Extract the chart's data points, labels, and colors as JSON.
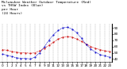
{
  "title_line1": "Milwaukee Weather Outdoor Temperature (Red)",
  "title_line2": "vs THSW Index (Blue)",
  "title_line3": "per Hour",
  "title_line4": "(24 Hours)",
  "hours": [
    0,
    1,
    2,
    3,
    4,
    5,
    6,
    7,
    8,
    9,
    10,
    11,
    12,
    13,
    14,
    15,
    16,
    17,
    18,
    19,
    20,
    21,
    22,
    23
  ],
  "temp_red": [
    55,
    54,
    52,
    51,
    50,
    50,
    49,
    50,
    53,
    57,
    62,
    67,
    72,
    75,
    76,
    75,
    72,
    68,
    64,
    60,
    57,
    55,
    53,
    52
  ],
  "thsw_blue": [
    48,
    46,
    44,
    42,
    41,
    41,
    40,
    43,
    50,
    59,
    70,
    79,
    86,
    90,
    91,
    88,
    82,
    73,
    63,
    56,
    51,
    47,
    45,
    43
  ],
  "ylim": [
    35,
    97
  ],
  "yticks": [
    40,
    50,
    60,
    70,
    80,
    90
  ],
  "ytick_labels": [
    "40",
    "50",
    "60",
    "70",
    "80",
    "90"
  ],
  "grid_color": "#888888",
  "bg_color": "#ffffff",
  "red_color": "#cc0000",
  "blue_color": "#0000cc",
  "title_fontsize": 3.2,
  "tick_fontsize": 3.0,
  "line_width": 0.5,
  "marker_size": 1.0
}
